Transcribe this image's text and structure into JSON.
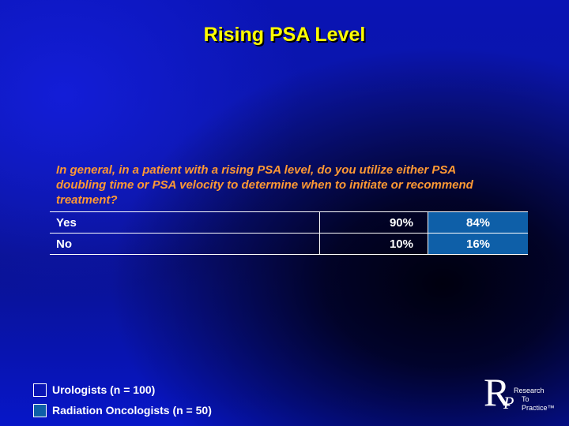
{
  "title": "Rising PSA Level",
  "question": "In general, in a patient with a rising PSA level, do you utilize either PSA doubling time or PSA velocity to determine when to initiate or recommend treatment?",
  "rows": [
    {
      "label": "Yes",
      "urologists": "90%",
      "radiation_oncologists": "84%"
    },
    {
      "label": "No",
      "urologists": "10%",
      "radiation_oncologists": "16%"
    }
  ],
  "legend": [
    {
      "label": "Urologists  (n = 100)",
      "color": "#0a14b4"
    },
    {
      "label": "Radiation Oncologists  (n = 50)",
      "color": "#0e5fa8"
    }
  ],
  "logo": {
    "mark_r": "R",
    "mark_p": "P",
    "line1": "Research",
    "line2": "To Practice™"
  },
  "colors": {
    "title": "#ffff00",
    "question": "#ff9933",
    "background": "#0a14b4"
  }
}
